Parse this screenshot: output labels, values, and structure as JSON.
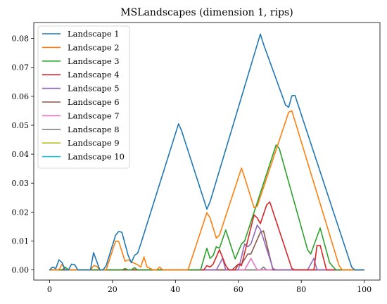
{
  "chart_data": {
    "type": "line",
    "title": "MSLandscapes (dimension 1, rips)",
    "xlabel": "",
    "ylabel": "",
    "xlim": [
      -5,
      105
    ],
    "ylim": [
      -0.0035,
      0.0855
    ],
    "xticks": [
      0,
      20,
      40,
      60,
      80,
      100
    ],
    "yticks": [
      0.0,
      0.01,
      0.02,
      0.03,
      0.04,
      0.05,
      0.06,
      0.07,
      0.08
    ],
    "ytick_labels": [
      "0.00",
      "0.01",
      "0.02",
      "0.03",
      "0.04",
      "0.05",
      "0.06",
      "0.07",
      "0.08"
    ],
    "grid": false,
    "legend_position": "upper-left",
    "series": [
      {
        "name": "Landscape 1",
        "color": "#1f77b4",
        "points": [
          [
            0,
            0
          ],
          [
            1,
            0.001
          ],
          [
            2,
            0.0005
          ],
          [
            3,
            0.0035
          ],
          [
            4,
            0.0025
          ],
          [
            5,
            0
          ],
          [
            6,
            0
          ],
          [
            7,
            0.002
          ],
          [
            8,
            0.0018
          ],
          [
            9,
            0
          ],
          [
            13,
            0
          ],
          [
            14,
            0.006
          ],
          [
            15,
            0.003
          ],
          [
            16,
            0
          ],
          [
            17,
            0
          ],
          [
            18,
            0.0015
          ],
          [
            19,
            0.005
          ],
          [
            20,
            0.0085
          ],
          [
            21,
            0.012
          ],
          [
            22,
            0.0133
          ],
          [
            23,
            0.013
          ],
          [
            24,
            0.009
          ],
          [
            25,
            0.005
          ],
          [
            26,
            0.0025
          ],
          [
            27,
            0.005
          ],
          [
            28,
            0.0058
          ],
          [
            29,
            0.009
          ],
          [
            41,
            0.0505
          ],
          [
            42,
            0.048
          ],
          [
            50,
            0.021
          ],
          [
            51,
            0.0235
          ],
          [
            67,
            0.0815
          ],
          [
            68,
            0.078
          ],
          [
            75,
            0.057
          ],
          [
            76,
            0.0562
          ],
          [
            77,
            0.0602
          ],
          [
            78,
            0.0603
          ],
          [
            96,
            0.001
          ],
          [
            97,
            0
          ],
          [
            100,
            0
          ]
        ]
      },
      {
        "name": "Landscape 2",
        "color": "#ff7f0e",
        "points": [
          [
            0,
            0
          ],
          [
            3,
            0
          ],
          [
            4,
            0.002
          ],
          [
            5,
            0
          ],
          [
            13,
            0
          ],
          [
            14,
            0.0015
          ],
          [
            15,
            0.0013
          ],
          [
            16,
            0
          ],
          [
            18,
            0
          ],
          [
            21,
            0.01
          ],
          [
            22,
            0.0098
          ],
          [
            24,
            0.003
          ],
          [
            25,
            0.0035
          ],
          [
            26,
            0.0028
          ],
          [
            28,
            0.0018
          ],
          [
            29,
            0.001
          ],
          [
            30,
            0.0045
          ],
          [
            31,
            0.001
          ],
          [
            33,
            0
          ],
          [
            34,
            0
          ],
          [
            35,
            0.001
          ],
          [
            36,
            0
          ],
          [
            44,
            0
          ],
          [
            50,
            0.0198
          ],
          [
            51,
            0.018
          ],
          [
            53,
            0.011
          ],
          [
            54,
            0.012
          ],
          [
            61,
            0.0352
          ],
          [
            62,
            0.032
          ],
          [
            65,
            0.0215
          ],
          [
            66,
            0.022
          ],
          [
            76,
            0.0545
          ],
          [
            77,
            0.055
          ],
          [
            92,
            0.0015
          ],
          [
            93,
            0
          ],
          [
            100,
            0
          ]
        ]
      },
      {
        "name": "Landscape 3",
        "color": "#2ca02c",
        "points": [
          [
            0,
            0
          ],
          [
            4,
            0
          ],
          [
            5,
            0.001
          ],
          [
            6,
            0
          ],
          [
            23,
            0
          ],
          [
            24,
            0.0005
          ],
          [
            25,
            0
          ],
          [
            26,
            0
          ],
          [
            27,
            0.0008
          ],
          [
            28,
            0
          ],
          [
            48,
            0
          ],
          [
            50,
            0.0075
          ],
          [
            51,
            0.004
          ],
          [
            52,
            0.005
          ],
          [
            53,
            0.008
          ],
          [
            54,
            0.0075
          ],
          [
            56,
            0.0138
          ],
          [
            59,
            0.0038
          ],
          [
            61,
            0.009
          ],
          [
            62,
            0.01
          ],
          [
            72,
            0.0432
          ],
          [
            73,
            0.042
          ],
          [
            82,
            0.007
          ],
          [
            83,
            0.0055
          ],
          [
            86,
            0.0145
          ],
          [
            89,
            0.0025
          ],
          [
            91,
            0
          ],
          [
            100,
            0
          ]
        ]
      },
      {
        "name": "Landscape 4",
        "color": "#d62728",
        "points": [
          [
            0,
            0
          ],
          [
            49,
            0
          ],
          [
            50,
            0.0015
          ],
          [
            51,
            0.001
          ],
          [
            52,
            0.002
          ],
          [
            54,
            0.007
          ],
          [
            56,
            0.0015
          ],
          [
            57,
            0
          ],
          [
            59,
            0
          ],
          [
            60,
            0.002
          ],
          [
            61,
            0.0015
          ],
          [
            65,
            0.019
          ],
          [
            66,
            0.018
          ],
          [
            67,
            0.016
          ],
          [
            69,
            0.0225
          ],
          [
            70,
            0.0235
          ],
          [
            77,
            0.0005
          ],
          [
            78,
            0
          ],
          [
            84,
            0
          ],
          [
            85,
            0.0085
          ],
          [
            86,
            0.0085
          ],
          [
            88,
            0
          ],
          [
            100,
            0
          ]
        ]
      },
      {
        "name": "Landscape 5",
        "color": "#9467bd",
        "points": [
          [
            0,
            0
          ],
          [
            53,
            0
          ],
          [
            55,
            0.004
          ],
          [
            56,
            0
          ],
          [
            60,
            0
          ],
          [
            62,
            0.009
          ],
          [
            63,
            0.008
          ],
          [
            64,
            0.009
          ],
          [
            66,
            0.0155
          ],
          [
            67,
            0.014
          ],
          [
            71,
            0.0005
          ],
          [
            72,
            0
          ],
          [
            82,
            0
          ],
          [
            84,
            0.004
          ],
          [
            85,
            0
          ],
          [
            100,
            0
          ]
        ]
      },
      {
        "name": "Landscape 6",
        "color": "#8c564b",
        "points": [
          [
            0,
            0
          ],
          [
            58,
            0
          ],
          [
            60,
            0.002
          ],
          [
            61,
            0.002
          ],
          [
            63,
            0.0055
          ],
          [
            64,
            0.0055
          ],
          [
            67,
            0.013
          ],
          [
            68,
            0.0135
          ],
          [
            71,
            0
          ],
          [
            100,
            0
          ]
        ]
      },
      {
        "name": "Landscape 7",
        "color": "#e377c2",
        "points": [
          [
            0,
            0
          ],
          [
            62,
            0
          ],
          [
            64,
            0.004
          ],
          [
            66,
            0
          ],
          [
            100,
            0
          ]
        ]
      },
      {
        "name": "Landscape 8",
        "color": "#7f7f7f",
        "points": [
          [
            0,
            0
          ],
          [
            67,
            0
          ],
          [
            68,
            0.001
          ],
          [
            69,
            0
          ],
          [
            100,
            0
          ]
        ]
      },
      {
        "name": "Landscape 9",
        "color": "#bcbd22",
        "points": [
          [
            0,
            0
          ],
          [
            100,
            0
          ]
        ]
      },
      {
        "name": "Landscape 10",
        "color": "#17becf",
        "points": [
          [
            0,
            0
          ],
          [
            100,
            0
          ]
        ]
      }
    ]
  }
}
